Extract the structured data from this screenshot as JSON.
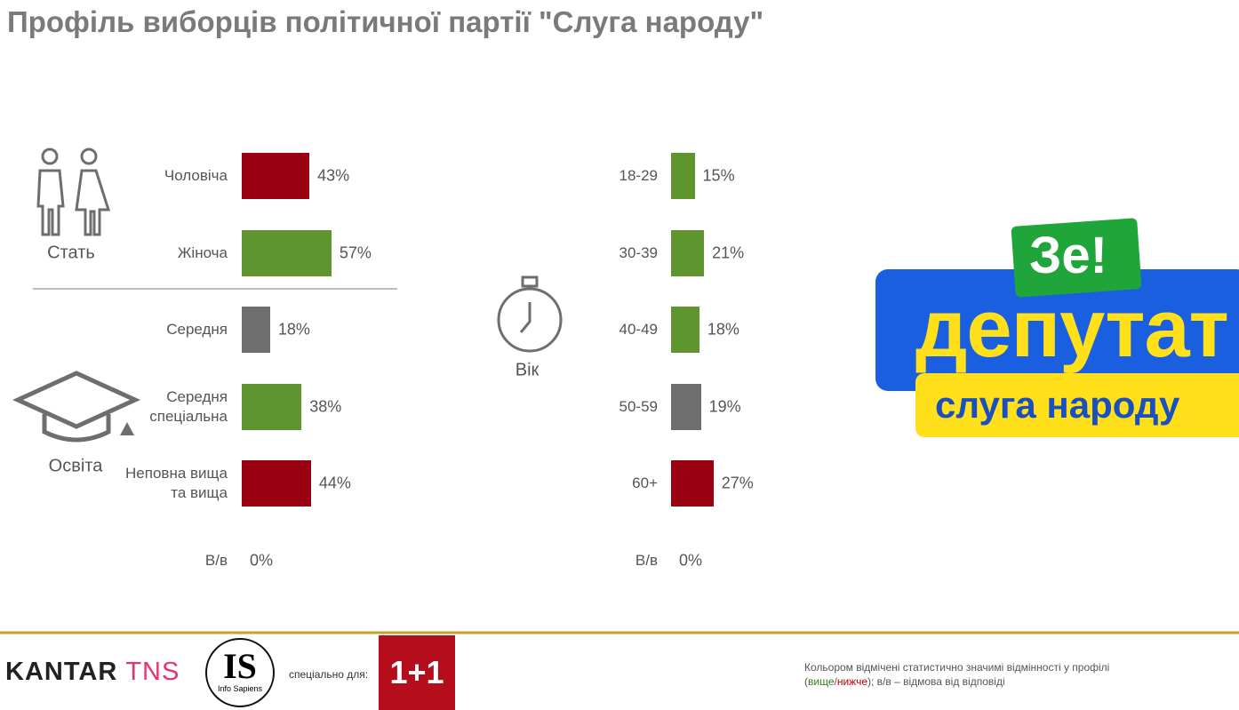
{
  "header": {
    "title": "Профіль виборців політичної партії \"Слуга народу\""
  },
  "chart_data": [
    {
      "type": "bar",
      "label": "Стать",
      "categories": [
        "Чоловіча",
        "Жіноча"
      ],
      "values": [
        43,
        57
      ],
      "value_labels": [
        "43%",
        "57%"
      ],
      "colors": [
        "#990011",
        "#5f952e"
      ]
    },
    {
      "type": "bar",
      "label": "Освіта",
      "categories": [
        "Середня",
        "Середня спеціальна",
        "Неповна вища та вища",
        "В/в"
      ],
      "values": [
        18,
        38,
        44,
        0
      ],
      "value_labels": [
        "18%",
        "38%",
        "44%",
        "0%"
      ],
      "colors": [
        "#6e6e6e",
        "#5f952e",
        "#990011",
        "#6e6e6e"
      ]
    },
    {
      "type": "bar",
      "label": "Вік",
      "categories": [
        "18-29",
        "30-39",
        "40-49",
        "50-59",
        "60+",
        "В/в"
      ],
      "values": [
        15,
        21,
        18,
        19,
        27,
        0
      ],
      "value_labels": [
        "15%",
        "21%",
        "18%",
        "19%",
        "27%",
        "0%"
      ],
      "colors": [
        "#5f952e",
        "#5f952e",
        "#5f952e",
        "#6e6e6e",
        "#990011",
        "#6e6e6e"
      ]
    }
  ],
  "banner": {
    "badge": "Зе!",
    "line1": "депутат",
    "line2": "слуга народу"
  },
  "footer": {
    "kantar": "KANTAR",
    "tns": "TNS",
    "is": "IS",
    "is_sub": "Info Sapiens",
    "for": "спеціально для:",
    "channel": "1+1",
    "note": [
      "Кольором відмічені статистично значимі відмінності у профілі",
      "(",
      "вище",
      "/",
      "нижче",
      "); в/в – відмова від відповіді"
    ]
  }
}
